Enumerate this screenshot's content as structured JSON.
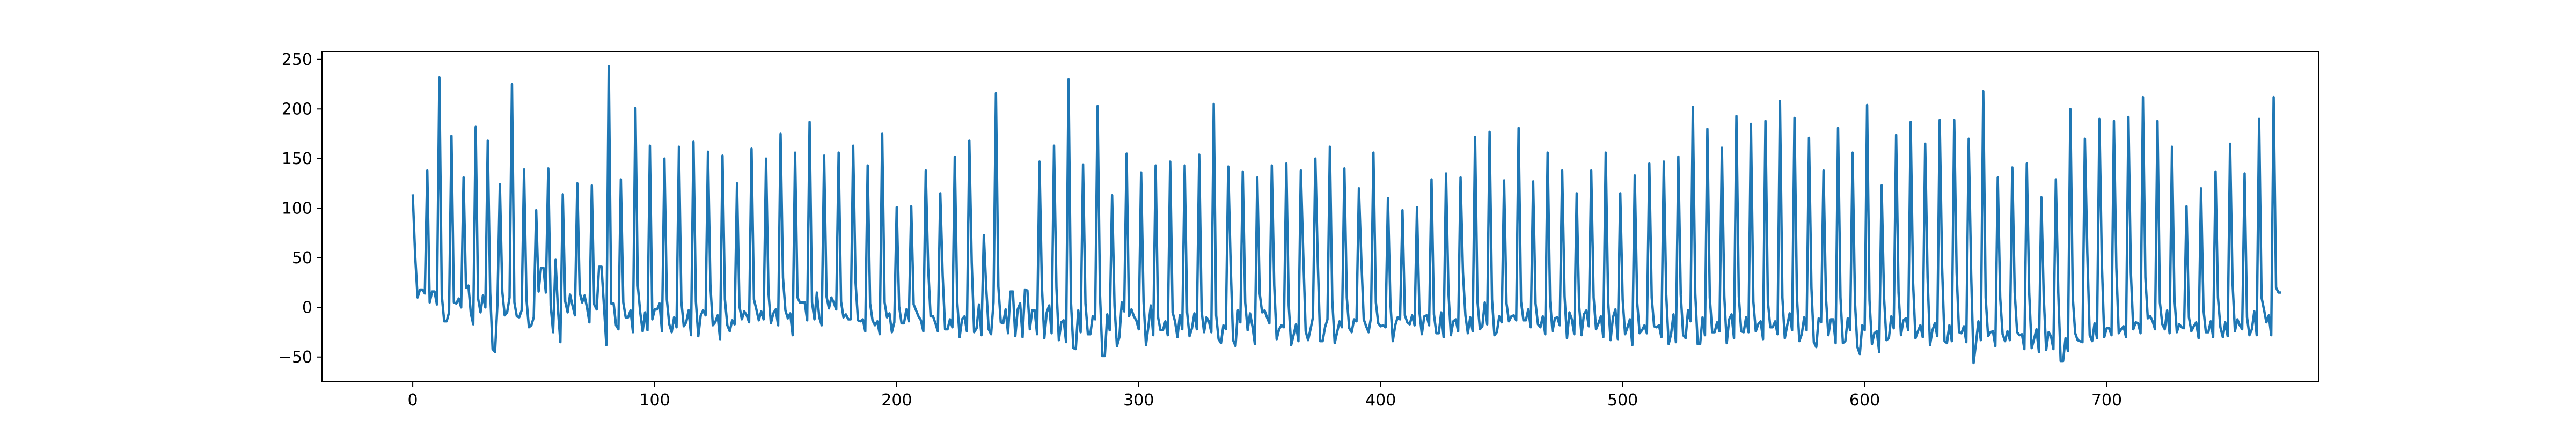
{
  "chart_data": {
    "type": "line",
    "title": "",
    "xlabel": "",
    "ylabel": "",
    "xlim": [
      -37.5,
      787.5
    ],
    "ylim": [
      -75,
      258
    ],
    "x_ticks": [
      0,
      100,
      200,
      300,
      400,
      500,
      600,
      700
    ],
    "y_ticks": [
      -50,
      0,
      50,
      100,
      150,
      200,
      250
    ],
    "grid": false,
    "legend": "none",
    "series": [
      {
        "color": "#1f77b4",
        "x_start": 0,
        "x_step": 1,
        "values": [
          114,
          52,
          10,
          18,
          18,
          14,
          138,
          5,
          16,
          16,
          3,
          232,
          12,
          -14,
          -14,
          -5,
          173,
          5,
          4,
          9,
          0,
          131,
          20,
          22,
          -6,
          -17,
          182,
          9,
          -5,
          12,
          0,
          168,
          15,
          -42,
          -45,
          4,
          124,
          16,
          -8,
          -5,
          10,
          225,
          5,
          -9,
          -10,
          -3,
          139,
          8,
          -20,
          -18,
          -10,
          98,
          16,
          40,
          40,
          15,
          140,
          2,
          -25,
          48,
          -2,
          -35,
          114,
          6,
          -5,
          13,
          2,
          -8,
          125,
          15,
          5,
          12,
          0,
          -15,
          123,
          3,
          -2,
          41,
          41,
          2,
          -38,
          243,
          4,
          4,
          -18,
          -22,
          129,
          5,
          -10,
          -10,
          -3,
          -25,
          201,
          22,
          -5,
          -24,
          -5,
          -23,
          163,
          -12,
          -2,
          -2,
          4,
          -24,
          150,
          8,
          -17,
          -25,
          -10,
          -20,
          162,
          6,
          -19,
          -15,
          -3,
          -28,
          167,
          6,
          -29,
          -8,
          -3,
          -8,
          157,
          22,
          -18,
          -15,
          -8,
          -32,
          153,
          8,
          -18,
          -24,
          -13,
          -17,
          125,
          1,
          -12,
          -4,
          -8,
          -15,
          160,
          8,
          -2,
          -13,
          -4,
          -12,
          150,
          15,
          -16,
          -6,
          -2,
          -18,
          175,
          30,
          -3,
          -11,
          -6,
          -28,
          156,
          10,
          5,
          5,
          5,
          -13,
          187,
          5,
          -12,
          15,
          -10,
          -18,
          153,
          11,
          -1,
          10,
          5,
          -2,
          156,
          6,
          -10,
          -7,
          -12,
          -12,
          163,
          25,
          -13,
          -14,
          -12,
          -24,
          143,
          4,
          -13,
          -18,
          -14,
          -27,
          175,
          5,
          -10,
          -6,
          -25,
          -15,
          101,
          1,
          -16,
          -16,
          -2,
          -14,
          102,
          3,
          -3,
          -9,
          -13,
          -24,
          138,
          40,
          -9,
          -9,
          -16,
          -24,
          115,
          32,
          -22,
          -22,
          -12,
          -20,
          152,
          6,
          -30,
          -12,
          -9,
          -24,
          168,
          45,
          -25,
          -21,
          3,
          -28,
          73,
          19,
          -22,
          -27,
          5,
          216,
          21,
          -15,
          -16,
          -2,
          -26,
          16,
          16,
          -29,
          -2,
          4,
          -30,
          18,
          17,
          -22,
          -3,
          -3,
          -27,
          147,
          21,
          -31,
          -5,
          2,
          -26,
          163,
          20,
          -33,
          -15,
          -13,
          -35,
          230,
          6,
          -41,
          -42,
          -3,
          -25,
          144,
          4,
          -27,
          -27,
          -9,
          -12,
          203,
          13,
          -49,
          -49,
          -7,
          -23,
          113,
          2,
          -39,
          -30,
          5,
          -4,
          155,
          -9,
          -2,
          -9,
          -13,
          -22,
          136,
          6,
          -38,
          -19,
          2,
          -28,
          143,
          -10,
          -23,
          -23,
          -14,
          -28,
          147,
          -5,
          -14,
          -30,
          -8,
          -22,
          143,
          -5,
          -29,
          -21,
          -6,
          -22,
          154,
          -4,
          -25,
          -10,
          -14,
          -25,
          205,
          -8,
          -32,
          -36,
          -18,
          -22,
          142,
          42,
          -33,
          -39,
          -3,
          -15,
          137,
          5,
          -23,
          -6,
          -19,
          -37,
          131,
          14,
          -5,
          -3,
          -10,
          -16,
          143,
          22,
          -32,
          -22,
          -18,
          -20,
          145,
          2,
          -38,
          -28,
          -17,
          -34,
          138,
          53,
          -24,
          -33,
          -22,
          -10,
          150,
          46,
          -34,
          -34,
          -20,
          -12,
          162,
          7,
          -36,
          -25,
          -14,
          -20,
          140,
          10,
          -21,
          -25,
          -12,
          -14,
          120,
          48,
          -12,
          -19,
          -25,
          -10,
          156,
          5,
          -16,
          -19,
          -18,
          -20,
          110,
          5,
          -34,
          -18,
          -10,
          -12,
          98,
          -8,
          -15,
          -17,
          -8,
          -18,
          101,
          -4,
          -27,
          -9,
          -8,
          -18,
          129,
          -7,
          -26,
          -26,
          -5,
          -30,
          135,
          15,
          -28,
          -14,
          -12,
          -24,
          131,
          35,
          -8,
          -26,
          -10,
          -24,
          172,
          6,
          -22,
          -19,
          5,
          -17,
          177,
          8,
          -28,
          -25,
          -9,
          -15,
          128,
          4,
          -14,
          -9,
          -8,
          -13,
          181,
          6,
          -13,
          -13,
          -2,
          -20,
          127,
          4,
          -17,
          -20,
          -9,
          -27,
          156,
          7,
          -24,
          -11,
          -10,
          -18,
          138,
          11,
          -31,
          -5,
          -12,
          -27,
          115,
          2,
          -28,
          -7,
          -3,
          -19,
          138,
          10,
          -22,
          -16,
          -9,
          -30,
          156,
          6,
          -33,
          -10,
          -2,
          -32,
          115,
          8,
          -27,
          -20,
          -12,
          -38,
          133,
          5,
          -26,
          -23,
          -18,
          -26,
          145,
          10,
          -19,
          -20,
          -18,
          -30,
          147,
          13,
          -37,
          -27,
          -7,
          -35,
          152,
          13,
          -28,
          -31,
          -3,
          -14,
          202,
          14,
          -37,
          -37,
          -10,
          -28,
          180,
          10,
          -25,
          -25,
          -15,
          -24,
          161,
          11,
          -36,
          -12,
          -7,
          -31,
          193,
          11,
          -24,
          -25,
          -10,
          -25,
          185,
          6,
          -24,
          -17,
          -14,
          -32,
          188,
          6,
          -20,
          -20,
          -14,
          -27,
          208,
          10,
          -31,
          -18,
          -6,
          -23,
          191,
          11,
          -34,
          -27,
          -10,
          -23,
          171,
          20,
          -35,
          -40,
          -11,
          -15,
          138,
          10,
          -28,
          -12,
          -12,
          -36,
          181,
          10,
          -36,
          -34,
          -11,
          -23,
          156,
          5,
          -40,
          -47,
          -18,
          -23,
          204,
          7,
          -37,
          -26,
          -24,
          -45,
          123,
          10,
          -33,
          -31,
          -9,
          -21,
          174,
          15,
          -28,
          -13,
          -11,
          -23,
          187,
          25,
          -31,
          -24,
          -18,
          -30,
          165,
          30,
          -38,
          -23,
          -16,
          -29,
          189,
          40,
          -34,
          -36,
          -18,
          -34,
          189,
          35,
          -25,
          -26,
          -19,
          -35,
          170,
          34,
          -56,
          -36,
          -14,
          -33,
          218,
          10,
          -29,
          -25,
          -24,
          -39,
          131,
          10,
          -27,
          -34,
          -24,
          -33,
          141,
          15,
          -25,
          -28,
          -27,
          -42,
          145,
          14,
          -41,
          -32,
          -22,
          -45,
          111,
          10,
          -43,
          -25,
          -29,
          -42,
          129,
          15,
          -54,
          -54,
          -31,
          -44,
          200,
          10,
          -26,
          -33,
          -34,
          -35,
          170,
          55,
          -28,
          -34,
          -16,
          -31,
          190,
          45,
          -30,
          -21,
          -21,
          -28,
          188,
          40,
          -26,
          -22,
          -19,
          -30,
          192,
          35,
          -22,
          -15,
          -16,
          -26,
          212,
          30,
          -11,
          -9,
          -14,
          -22,
          188,
          5,
          -17,
          -22,
          -3,
          -26,
          162,
          10,
          -25,
          -17,
          -20,
          -21,
          102,
          -10,
          -24,
          -19,
          -15,
          -31,
          120,
          -2,
          -25,
          -25,
          -14,
          -30,
          137,
          10,
          -20,
          -30,
          -15,
          -29,
          165,
          26,
          -24,
          -12,
          -18,
          -22,
          135,
          -10,
          -28,
          -22,
          -4,
          -28,
          190,
          10,
          -2,
          -15,
          -8,
          -28,
          212,
          20,
          15,
          15
        ]
      }
    ]
  }
}
